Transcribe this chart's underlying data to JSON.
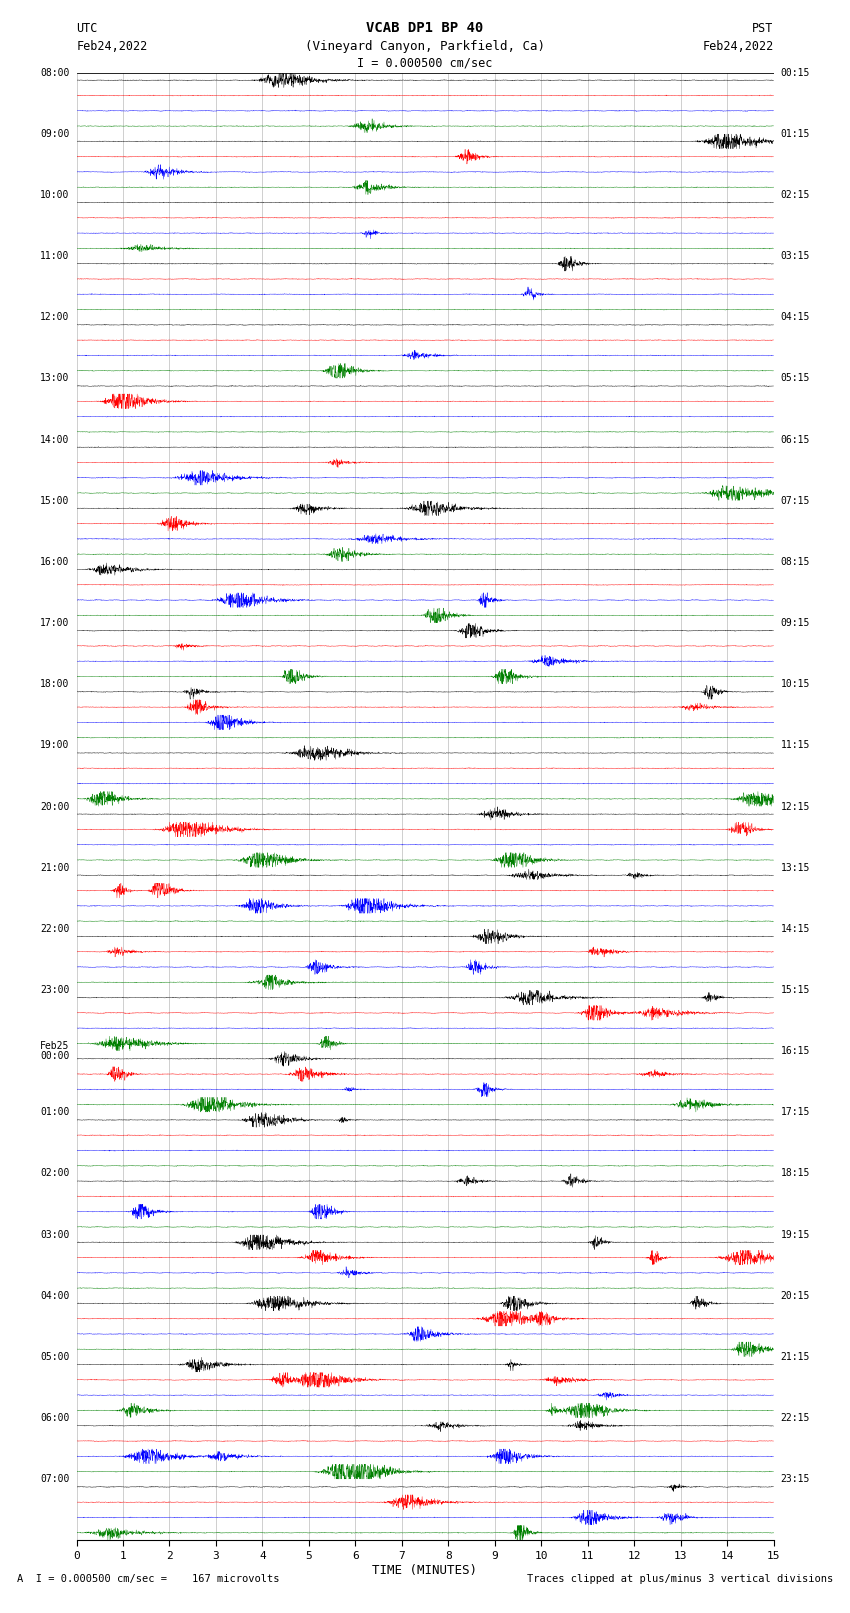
{
  "title_line1": "VCAB DP1 BP 40",
  "title_line2": "(Vineyard Canyon, Parkfield, Ca)",
  "scale_label": "I = 0.000500 cm/sec",
  "utc_label1": "UTC",
  "utc_label2": "Feb24,2022",
  "pst_label1": "PST",
  "pst_label2": "Feb24,2022",
  "bottom_label1": "A  I = 0.000500 cm/sec =    167 microvolts",
  "bottom_label2": "Traces clipped at plus/minus 3 vertical divisions",
  "xlabel": "TIME (MINUTES)",
  "xmin": 0,
  "xmax": 15,
  "xticks": [
    0,
    1,
    2,
    3,
    4,
    5,
    6,
    7,
    8,
    9,
    10,
    11,
    12,
    13,
    14,
    15
  ],
  "n_groups": 24,
  "traces_per_group": 4,
  "colors": [
    "black",
    "red",
    "blue",
    "green"
  ],
  "left_times": [
    "08:00",
    "09:00",
    "10:00",
    "11:00",
    "12:00",
    "13:00",
    "14:00",
    "15:00",
    "16:00",
    "17:00",
    "18:00",
    "19:00",
    "20:00",
    "21:00",
    "22:00",
    "23:00",
    "Feb25\n00:00",
    "01:00",
    "02:00",
    "03:00",
    "04:00",
    "05:00",
    "06:00",
    "07:00"
  ],
  "right_times": [
    "00:15",
    "01:15",
    "02:15",
    "03:15",
    "04:15",
    "05:15",
    "06:15",
    "07:15",
    "08:15",
    "09:15",
    "10:15",
    "11:15",
    "12:15",
    "13:15",
    "14:15",
    "15:15",
    "16:15",
    "17:15",
    "18:15",
    "19:15",
    "20:15",
    "21:15",
    "22:15",
    "23:15"
  ],
  "bg_color": "#ffffff",
  "grid_color": "#888888",
  "noise_base": 0.018,
  "n_points": 3000
}
